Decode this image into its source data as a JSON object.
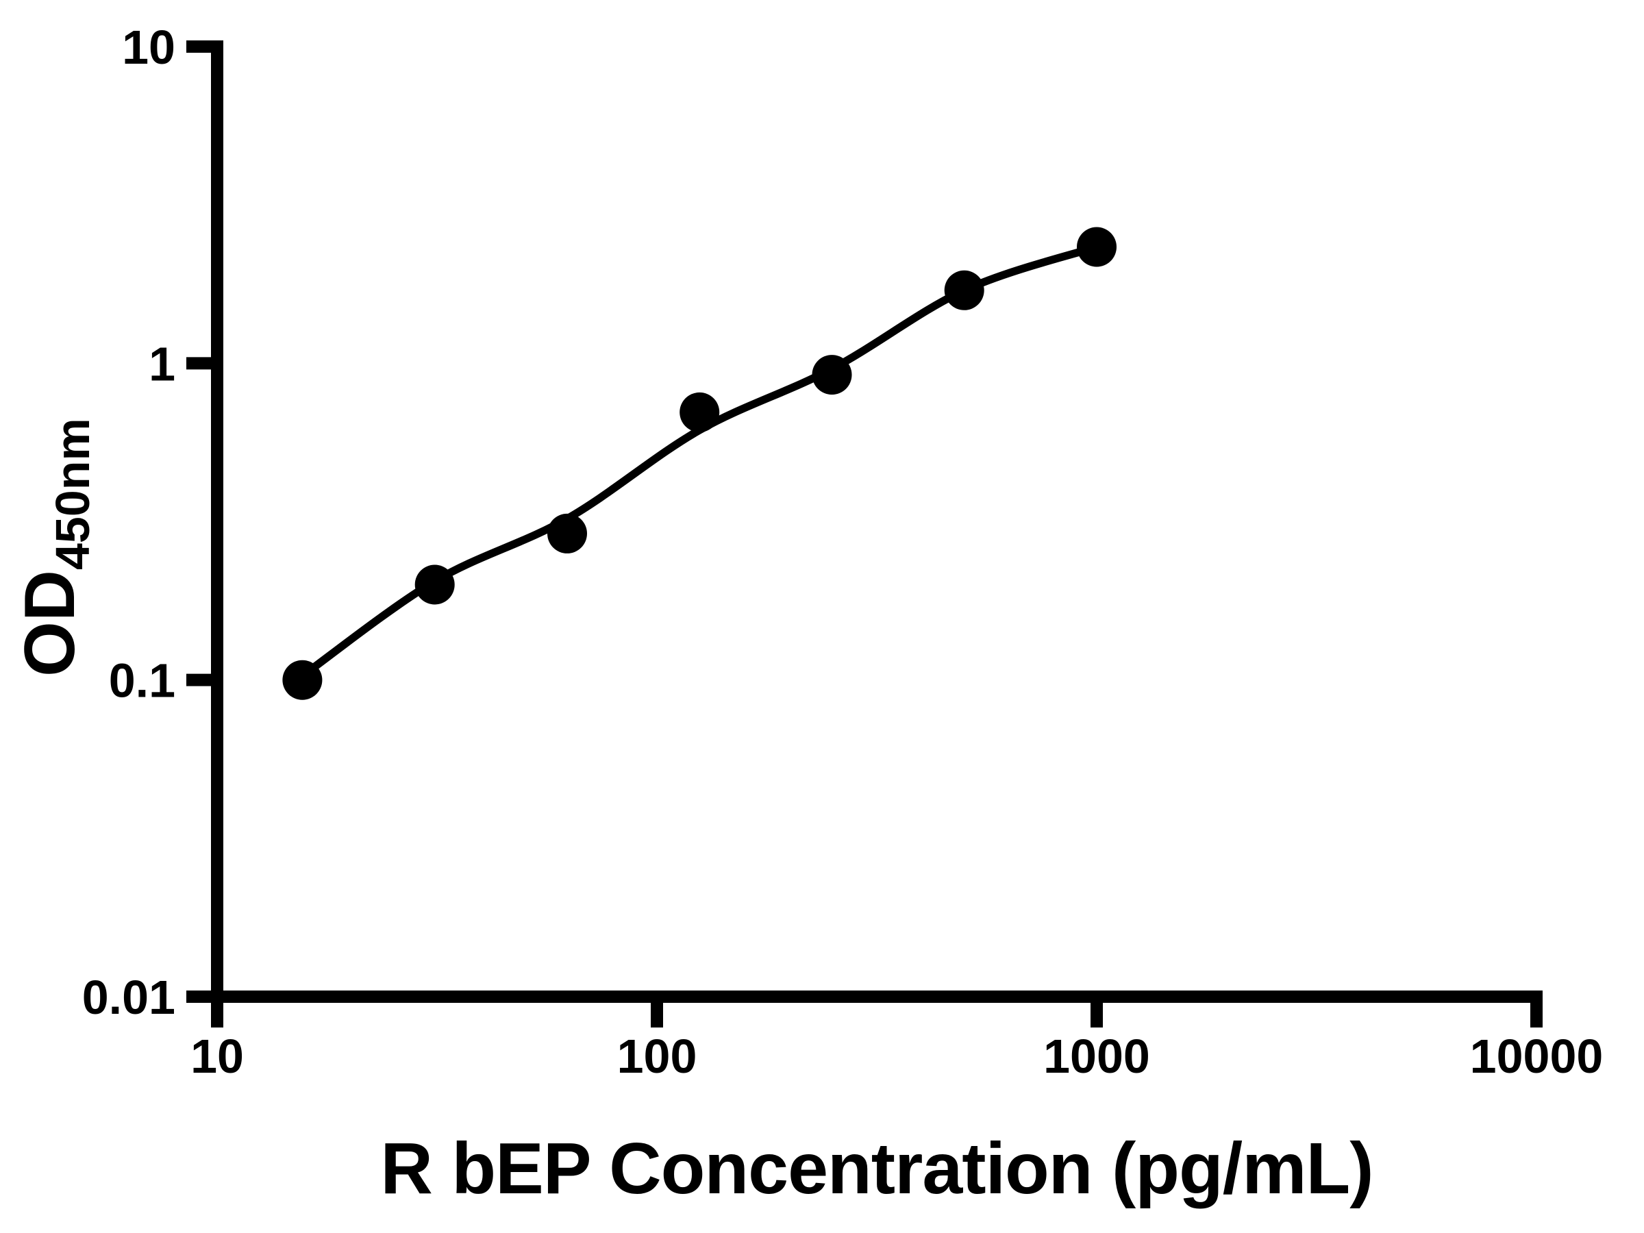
{
  "figure": {
    "background": "#ffffff"
  },
  "chart_data": {
    "type": "scatter",
    "title": "",
    "xlabel": "R bEP Concentration (pg/mL)",
    "ylabel": {
      "base": "OD",
      "subscript": "450nm"
    },
    "x_scale": "log",
    "y_scale": "log",
    "xlim": [
      10,
      10000
    ],
    "ylim": [
      0.01,
      10
    ],
    "x_tick_values": [
      10,
      100,
      1000,
      10000
    ],
    "x_tick_labels": [
      "10",
      "100",
      "1000",
      "10000"
    ],
    "y_tick_values": [
      10,
      1,
      0.1,
      0.01
    ],
    "y_tick_labels": [
      "10",
      "1",
      "0.1",
      "0.01"
    ],
    "grid": false,
    "legend": false,
    "axis_color": "#000000",
    "marker_shape": "circle",
    "marker_color": "#000000",
    "line_color": "#000000",
    "points": [
      {
        "x": 15.625,
        "od": 0.1
      },
      {
        "x": 31.25,
        "od": 0.2
      },
      {
        "x": 62.5,
        "od": 0.29
      },
      {
        "x": 125,
        "od": 0.7
      },
      {
        "x": 250,
        "od": 0.92
      },
      {
        "x": 500,
        "od": 1.7
      },
      {
        "x": 1000,
        "od": 2.33
      }
    ],
    "fit_curve": [
      [
        15.625,
        0.103
      ],
      [
        31.25,
        0.205
      ],
      [
        62.5,
        0.323
      ],
      [
        125,
        0.615
      ],
      [
        250,
        0.96
      ],
      [
        500,
        1.7
      ],
      [
        1000,
        2.33
      ]
    ]
  }
}
